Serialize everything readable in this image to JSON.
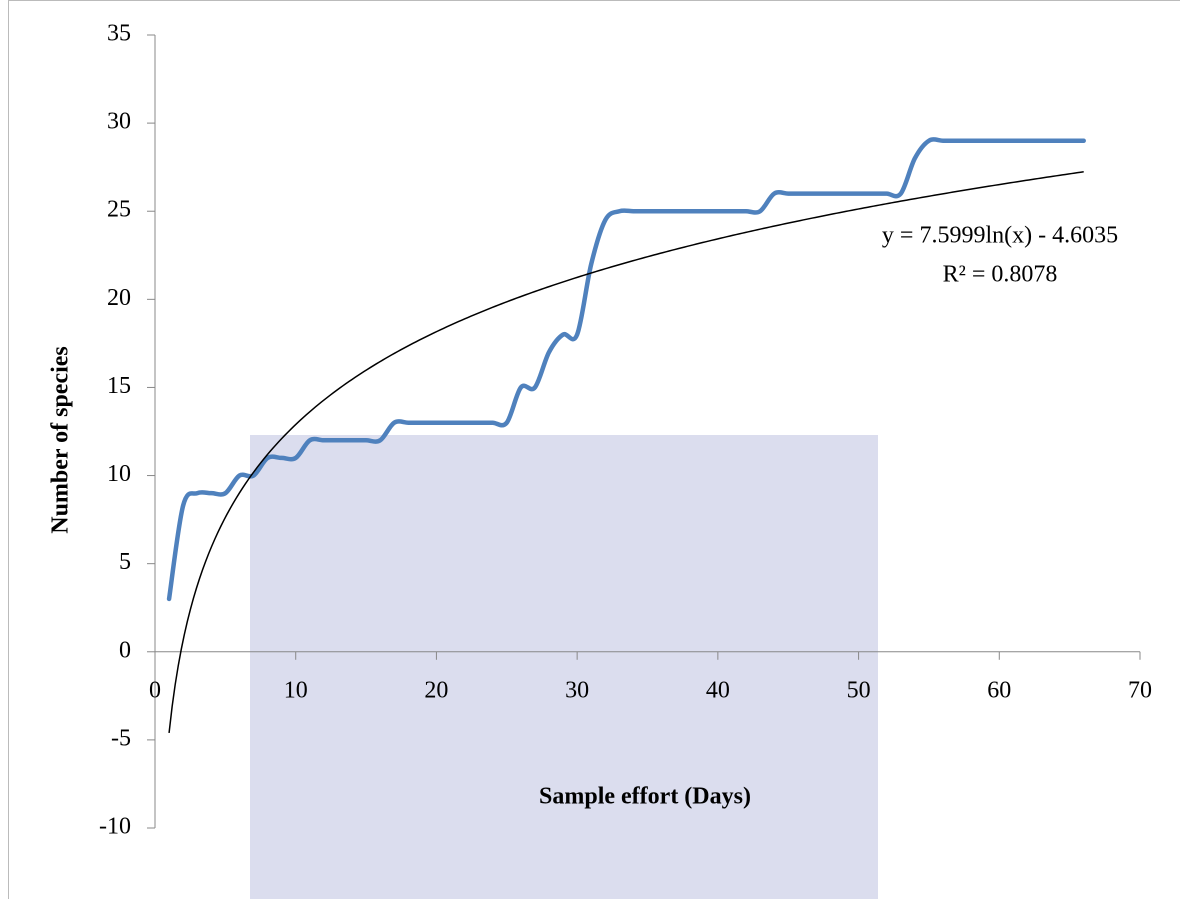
{
  "chart_data": {
    "type": "line",
    "x_label": "Sample effort (Days)",
    "y_label": "Number of species",
    "x": [
      1,
      2,
      3,
      4,
      5,
      6,
      7,
      8,
      9,
      10,
      11,
      12,
      13,
      14,
      15,
      16,
      17,
      18,
      19,
      20,
      21,
      22,
      23,
      24,
      25,
      26,
      27,
      28,
      29,
      30,
      31,
      32,
      33,
      34,
      35,
      36,
      37,
      38,
      39,
      40,
      41,
      42,
      43,
      44,
      45,
      46,
      47,
      48,
      49,
      50,
      51,
      52,
      53,
      54,
      55,
      56,
      57,
      58,
      59,
      60,
      61,
      62,
      63,
      64,
      65,
      66
    ],
    "series": [
      {
        "color": "#4f81bd",
        "values": [
          3,
          8.3,
          9,
          9,
          9,
          10,
          10,
          11,
          11,
          11,
          12,
          12,
          12,
          12,
          12,
          12,
          13,
          13,
          13,
          13,
          13,
          13,
          13,
          13,
          13,
          15,
          15,
          17,
          18,
          18,
          22,
          24.5,
          25,
          25,
          25,
          25,
          25,
          25,
          25,
          25,
          25,
          25,
          25,
          26,
          26,
          26,
          26,
          26,
          26,
          26,
          26,
          26,
          26,
          28,
          29,
          29,
          29,
          29,
          29,
          29,
          29,
          29,
          29,
          29,
          29,
          29
        ]
      }
    ],
    "trendline": {
      "equation": "y = 7.5999ln(x) - 4.6035",
      "r_squared": "R² = 0.8078",
      "coefficient": 7.5999,
      "intercept": -4.6035,
      "color": "#000000"
    },
    "xlim": [
      0,
      70
    ],
    "xticks": [
      0,
      10,
      20,
      30,
      40,
      50,
      60,
      70
    ],
    "ylim": [
      -10,
      35
    ],
    "yticks": [
      -10,
      -5,
      0,
      5,
      10,
      15,
      20,
      25,
      30,
      35
    ]
  }
}
